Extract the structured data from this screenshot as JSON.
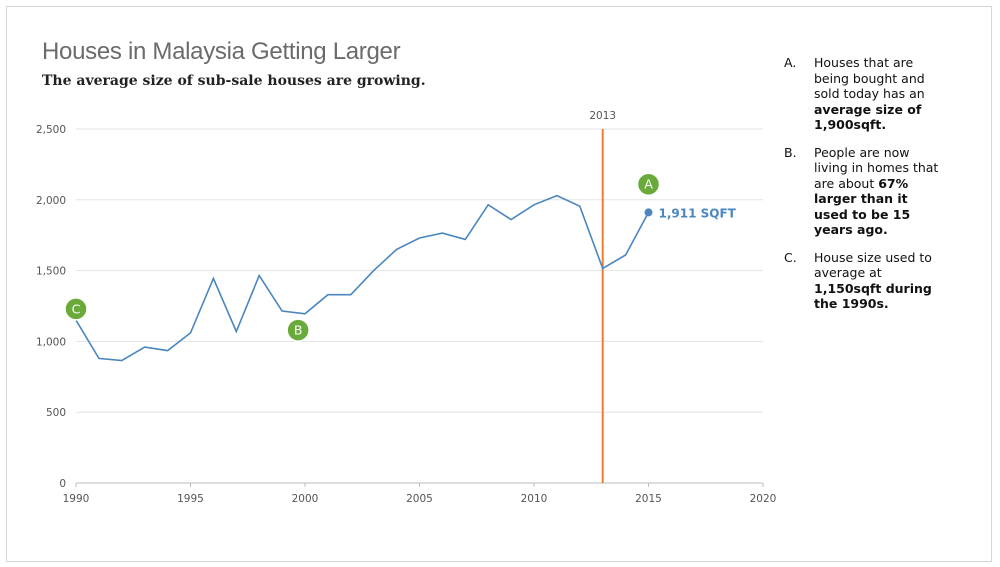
{
  "chart_data": {
    "type": "line",
    "title": "Houses in Malaysia Getting Larger",
    "subtitle": "The average size of sub-sale houses are growing.",
    "x": [
      1990,
      1991,
      1992,
      1993,
      1994,
      1995,
      1996,
      1997,
      1998,
      1999,
      2000,
      2001,
      2002,
      2003,
      2004,
      2005,
      2006,
      2007,
      2008,
      2009,
      2010,
      2011,
      2012,
      2013,
      2014,
      2015
    ],
    "y": [
      1150,
      880,
      865,
      960,
      935,
      1060,
      1445,
      1070,
      1465,
      1215,
      1195,
      1330,
      1330,
      1500,
      1650,
      1730,
      1765,
      1720,
      1965,
      1860,
      1965,
      2030,
      1955,
      1515,
      1610,
      1911
    ],
    "xlim": [
      1990,
      2020
    ],
    "ylim": [
      0,
      2500
    ],
    "xticks": [
      1990,
      1995,
      2000,
      2005,
      2010,
      2015,
      2020
    ],
    "yticks": [
      0,
      500,
      1000,
      1500,
      2000,
      2500
    ],
    "ytick_labels": [
      "0",
      "500",
      "1,000",
      "1,500",
      "2,000",
      "2,500"
    ],
    "grid": "horizontal",
    "line_color": "#4a86c0",
    "vline": {
      "x": 2013,
      "label": "2013",
      "color": "#f07c2c"
    },
    "end_label": "1,911 SQFT",
    "markers": [
      {
        "letter": "A",
        "x": 2015,
        "y": 2110
      },
      {
        "letter": "B",
        "x": 1999.7,
        "y": 1080
      },
      {
        "letter": "C",
        "x": 1990,
        "y": 1230
      }
    ],
    "marker_color": "#6aaa3a"
  },
  "notes": [
    {
      "letter": "A.",
      "text": "Houses that are being bought and sold today has an ",
      "bold": "average size of 1,900sqft.",
      "after": ""
    },
    {
      "letter": "B.",
      "text": "People are now living in homes that are about ",
      "bold": "67% larger than it used to be 15 years ago.",
      "after": ""
    },
    {
      "letter": "C.",
      "text": "House size used to average at ",
      "bold": "1,150sqft during the 1990s.",
      "after": ""
    }
  ]
}
